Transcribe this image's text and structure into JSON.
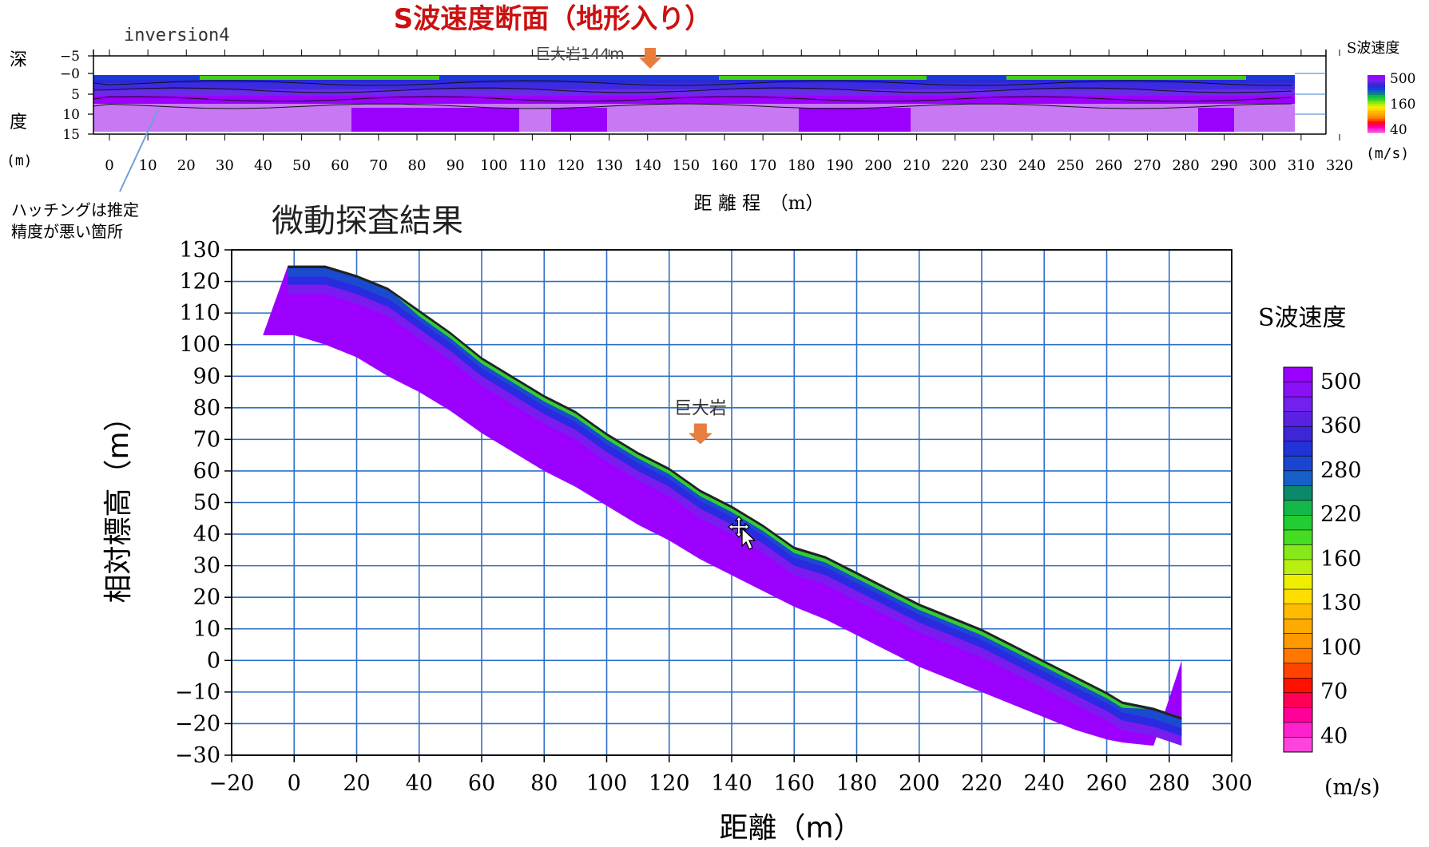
{
  "page": {
    "main_title": "S波速度断面（地形入り）",
    "main_title_color": "#cc1111",
    "cursor_icon": "move-cursor-icon"
  },
  "top_panel": {
    "label": "inversion4",
    "depth_label_1": "深",
    "depth_label_2": "度",
    "depth_unit": "(m)",
    "yticks": [
      "−5",
      "−0",
      "5",
      "10",
      "15"
    ],
    "xticks": [
      "0",
      "10",
      "20",
      "30",
      "40",
      "50",
      "60",
      "70",
      "80",
      "90",
      "100",
      "110",
      "120",
      "130",
      "140",
      "150",
      "160",
      "170",
      "180",
      "190",
      "200",
      "210",
      "220",
      "230",
      "240",
      "250",
      "260",
      "270",
      "280",
      "290",
      "300",
      "310",
      "320"
    ],
    "xlabel": "距 離 程　（m）",
    "marker_label": "巨大岩144m",
    "marker_color": "#e87d3e",
    "annotation_line1": "ハッチングは推定",
    "annotation_line2": "精度が悪い箇所",
    "colorbar": {
      "title": "S波速度",
      "ticks": [
        "500",
        "160",
        "40"
      ],
      "unit": "(m/s)"
    }
  },
  "chart_data": {
    "type": "heatmap",
    "title": "微動探査結果",
    "xlabel": "距離（m）",
    "ylabel": "相対標高（m）",
    "xlim": [
      -20,
      300
    ],
    "ylim": [
      -30,
      130
    ],
    "xticks": [
      -20,
      0,
      20,
      40,
      60,
      80,
      100,
      120,
      140,
      160,
      180,
      200,
      220,
      240,
      260,
      280,
      300
    ],
    "yticks": [
      130,
      120,
      110,
      100,
      90,
      80,
      70,
      60,
      50,
      40,
      30,
      20,
      10,
      0,
      -10,
      -20,
      -30
    ],
    "grid": true,
    "surface_profile": {
      "x": [
        -10,
        -2,
        10,
        20,
        30,
        40,
        50,
        60,
        70,
        80,
        90,
        100,
        110,
        120,
        130,
        140,
        150,
        160,
        170,
        180,
        190,
        200,
        210,
        220,
        230,
        240,
        250,
        260,
        265,
        275,
        284
      ],
      "top": [
        103,
        125,
        125,
        122,
        118,
        111,
        104,
        96,
        90,
        84,
        79,
        72,
        66,
        61,
        54,
        49,
        43,
        36,
        33,
        28,
        23,
        18,
        14,
        10,
        5,
        0,
        -5,
        -10,
        -13,
        -15,
        -18
      ]
    },
    "bottom_profile": {
      "x": [
        -10,
        0,
        10,
        20,
        30,
        40,
        50,
        60,
        70,
        80,
        90,
        100,
        110,
        120,
        130,
        140,
        150,
        160,
        170,
        180,
        190,
        200,
        210,
        220,
        230,
        240,
        250,
        260,
        265,
        275,
        284
      ],
      "bottom": [
        103,
        103,
        100,
        96,
        90,
        85,
        79,
        72,
        66,
        60,
        55,
        49,
        43,
        38,
        32,
        27,
        22,
        17,
        13,
        8,
        3,
        -2,
        -6,
        -10,
        -14,
        -18,
        -22,
        -25,
        -26,
        -27,
        0
      ]
    },
    "marker": {
      "label": "巨大岩",
      "x": 130,
      "y": 73
    },
    "colorbar": {
      "title": "S波速度",
      "ticks": [
        500,
        360,
        280,
        220,
        160,
        130,
        100,
        70,
        40
      ],
      "unit": "(m/s)",
      "colors": [
        "#9b00ff",
        "#8a10f5",
        "#7220ee",
        "#5a22e0",
        "#3d25d8",
        "#2232d6",
        "#1a45d0",
        "#1560c8",
        "#0a8a6a",
        "#14b84a",
        "#22cc33",
        "#44dd22",
        "#88e81a",
        "#b8ee10",
        "#eeee00",
        "#ffdd00",
        "#ffbb00",
        "#ffaa00",
        "#ff9900",
        "#ff7700",
        "#ff4400",
        "#ff1100",
        "#ff0055",
        "#ff0099",
        "#ff22cc",
        "#ff44dd"
      ]
    }
  }
}
